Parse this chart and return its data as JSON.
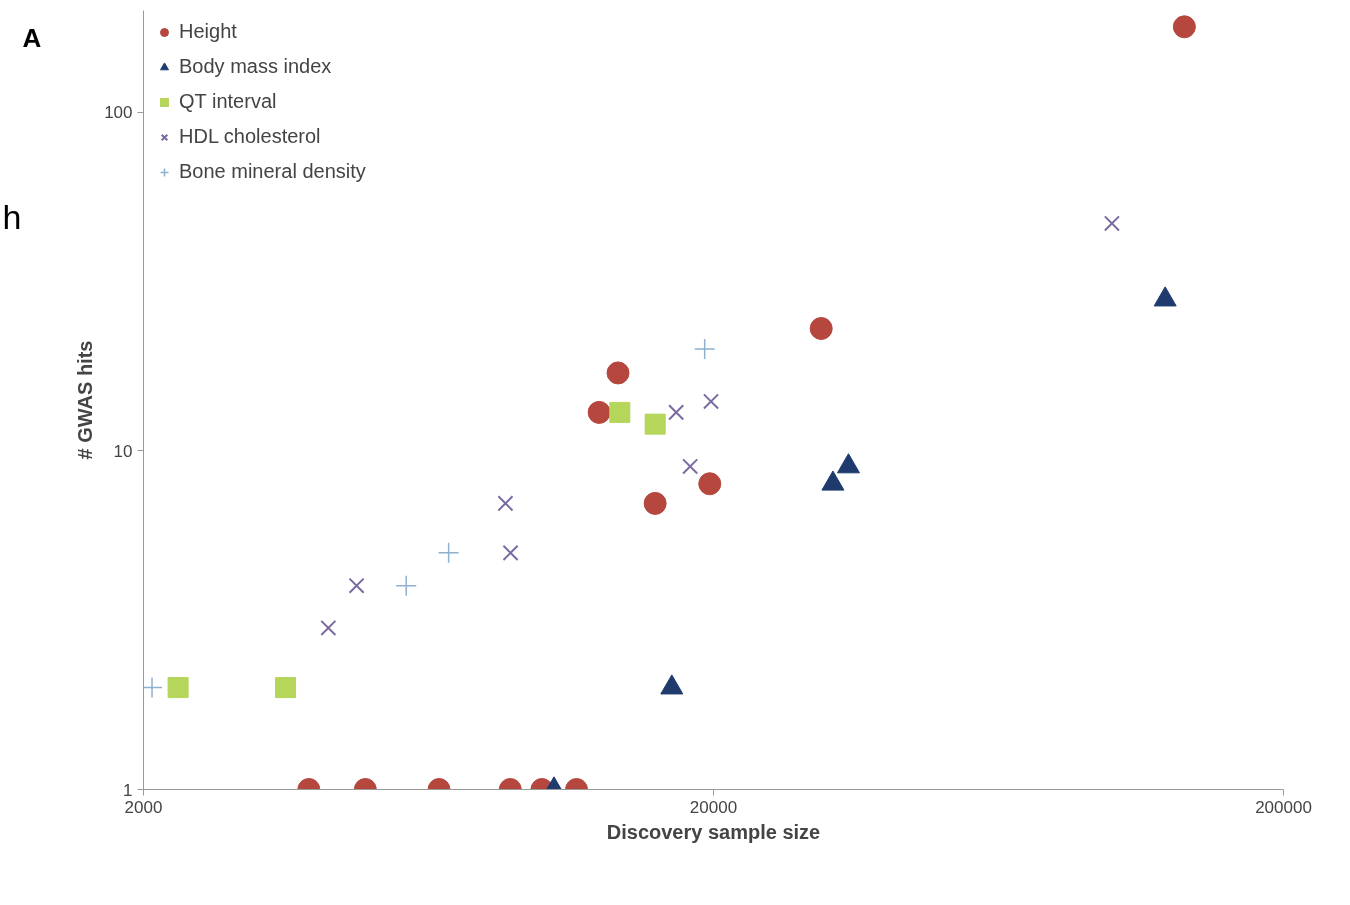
{
  "chart_data": {
    "type": "scatter",
    "xlabel": "Discovery sample size",
    "ylabel": "# GWAS hits",
    "annotations": [
      "A",
      "h"
    ],
    "log": "xy",
    "grid": false,
    "legend": "top left",
    "xlim": [
      2000,
      200000
    ],
    "xticks": [
      2000,
      20000,
      200000
    ],
    "ylim": [
      1,
      200
    ],
    "yticks": [
      1,
      10,
      100
    ],
    "series": [
      {
        "name": "Height",
        "color": "#b5473e",
        "marker": "circle",
        "x": [
          3900,
          4900,
          6600,
          8800,
          10000,
          11500,
          12600,
          13600,
          15800,
          19700,
          30900,
          134000
        ],
        "values": [
          1,
          1,
          1,
          1,
          1,
          1,
          13,
          17,
          7,
          8,
          23,
          179
        ]
      },
      {
        "name": "Body mass index",
        "color": "#1f3b6e",
        "marker": "triangle",
        "x": [
          10500,
          16900,
          32400,
          34500,
          124000
        ],
        "values": [
          1,
          2,
          8,
          9,
          28
        ]
      },
      {
        "name": "QT interval",
        "color": "#b5d55b",
        "marker": "square",
        "x": [
          2300,
          3550,
          13700,
          15800
        ],
        "values": [
          2,
          2,
          13,
          12
        ]
      },
      {
        "name": "HDL cholesterol",
        "color": "#7a6aa0",
        "marker": "x",
        "x": [
          4220,
          4730,
          8630,
          8810,
          17200,
          18200,
          19800,
          100000
        ],
        "values": [
          3,
          4,
          7,
          5,
          13,
          9,
          14,
          47
        ]
      },
      {
        "name": "Bone mineral density",
        "color": "#8fb0d0",
        "marker": "cross",
        "x": [
          2070,
          5780,
          6860,
          19300
        ],
        "values": [
          2,
          4,
          5,
          20
        ]
      }
    ]
  }
}
